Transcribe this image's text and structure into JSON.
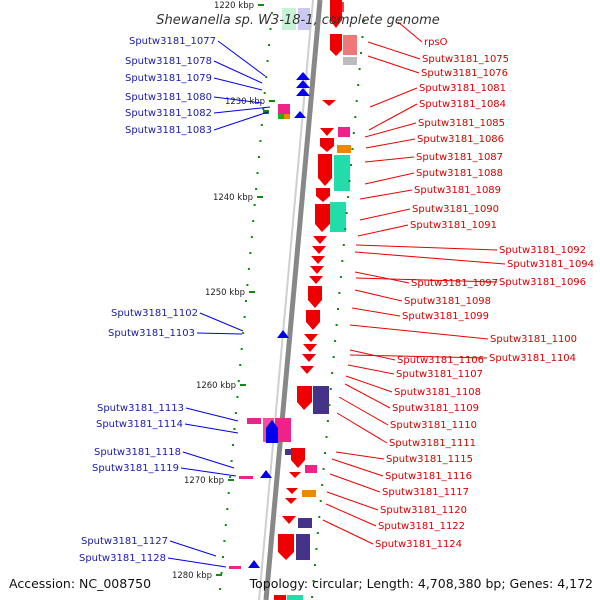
{
  "title": "Shewanella sp. W3-18-1, complete genome",
  "accession": "Accession: NC_008750",
  "topology_info": "Topology: circular; Length: 4,708,380 bp; Genes: 4,172",
  "kbp_labels": [
    "1220 kbp",
    "1230 kbp",
    "1240 kbp",
    "1250 kbp",
    "1260 kbp",
    "1270 kbp",
    "1280 kbp"
  ],
  "left_labels": [
    "Sputw3181_1077",
    "Sputw3181_1078",
    "Sputw3181_1079",
    "Sputw3181_1080",
    "Sputw3181_1082",
    "Sputw3181_1083",
    "Sputw3181_1102",
    "Sputw3181_1103",
    "Sputw3181_1113",
    "Sputw3181_1114",
    "Sputw3181_1118",
    "Sputw3181_1119",
    "Sputw3181_1127",
    "Sputw3181_1128"
  ],
  "right_labels": [
    "rpsO",
    "Sputw3181_1075",
    "Sputw3181_1076",
    "Sputw3181_1081",
    "Sputw3181_1084",
    "Sputw3181_1085",
    "Sputw3181_1086",
    "Sputw3181_1087",
    "Sputw3181_1088",
    "Sputw3181_1089",
    "Sputw3181_1090",
    "Sputw3181_1091",
    "Sputw3181_1092",
    "Sputw3181_1094",
    "Sputw3181_1097",
    "Sputw3181_1096",
    "Sputw3181_1098",
    "Sputw3181_1099",
    "Sputw3181_1100",
    "Sputw3181_1106",
    "Sputw3181_1104",
    "Sputw3181_1107",
    "Sputw3181_1108",
    "Sputw3181_1109",
    "Sputw3181_1110",
    "Sputw3181_1111",
    "Sputw3181_1115",
    "Sputw3181_1116",
    "Sputw3181_1117",
    "Sputw3181_1120",
    "Sputw3181_1122",
    "Sputw3181_1124"
  ],
  "colors": {
    "forward_strand": "#ee0000",
    "reverse_strand": "#0000ee",
    "left_label": "#1a1aaa",
    "right_label": "#d40000",
    "backbone": "#888888",
    "tick": "#118811",
    "gc_teal": "#22ddaa",
    "gc_pink": "#ee2288",
    "gc_purple": "#443388",
    "gc_orange": "#ee8800"
  }
}
